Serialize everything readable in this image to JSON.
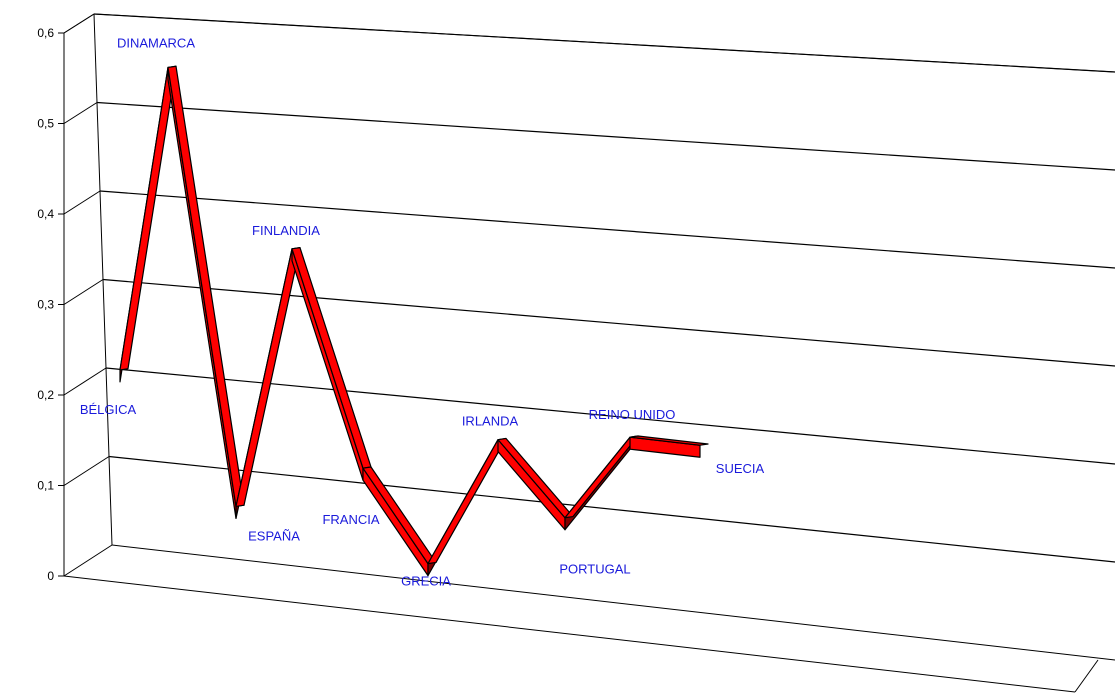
{
  "chart_data": {
    "type": "line",
    "style": "3d-ribbon",
    "categories": [
      "BÉLGICA",
      "DINAMARCA",
      "ESPAÑA",
      "FINLANDIA",
      "FRANCIA",
      "GRECIA",
      "IRLANDA",
      "PORTUGAL",
      "REINO UNIDO",
      "SUECIA"
    ],
    "values": [
      0.2,
      0.55,
      0.06,
      0.36,
      0.12,
      0.02,
      0.17,
      0.09,
      0.19,
      0.19
    ],
    "ylim": [
      0,
      0.6
    ],
    "yticks": [
      "0",
      "0,1",
      "0,2",
      "0,3",
      "0,4",
      "0,5",
      "0,6"
    ],
    "grid": true,
    "legend": "none",
    "title": "",
    "xlabel": "",
    "ylabel": "",
    "colors": {
      "ribbon_top": "#ff0000",
      "ribbon_side": "#800000",
      "label_text": "#1a1adb",
      "grid_line": "#000000",
      "background": "#ffffff"
    }
  }
}
